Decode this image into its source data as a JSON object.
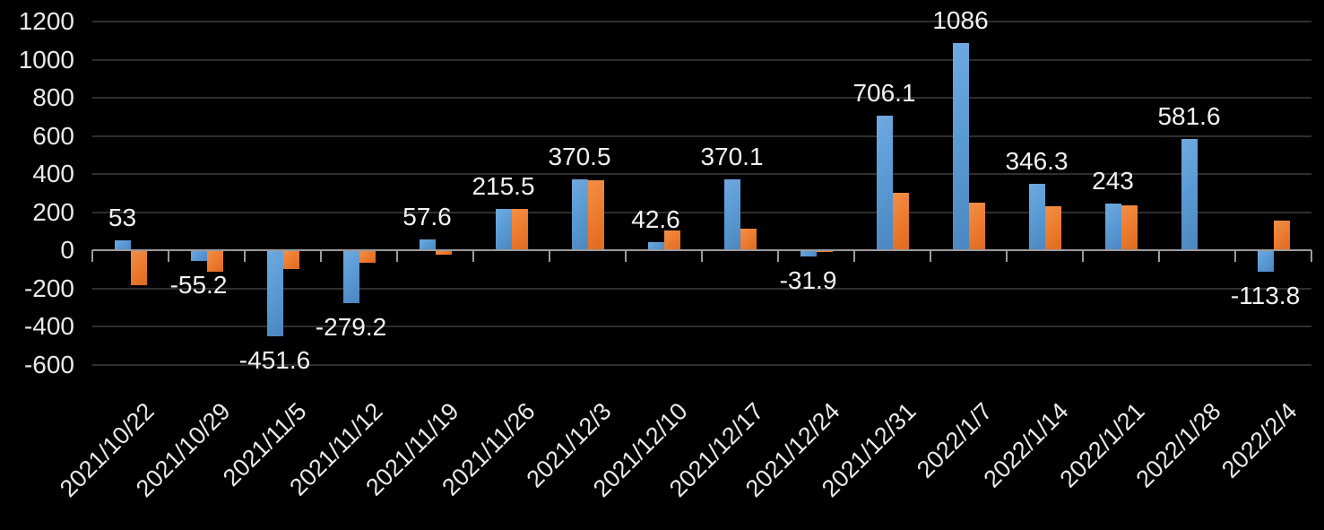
{
  "chart_data": {
    "type": "bar",
    "title": "",
    "legend_position": "none",
    "grid": true,
    "background": "#000000",
    "categories": [
      "2021/10/22",
      "2021/10/29",
      "2021/11/5",
      "2021/11/12",
      "2021/11/19",
      "2021/11/26",
      "2021/12/3",
      "2021/12/10",
      "2021/12/17",
      "2021/12/24",
      "2021/12/31",
      "2022/1/7",
      "2022/1/14",
      "2022/1/21",
      "2022/1/28",
      "2022/2/4"
    ],
    "series": [
      {
        "name": "series-blue",
        "color": "#5B9BD5",
        "values": [
          53,
          -55.2,
          -451.6,
          -279.2,
          57.6,
          215.5,
          370.5,
          42.6,
          370.1,
          -31.9,
          706.1,
          1086,
          346.3,
          243,
          581.6,
          -113.8
        ]
      },
      {
        "name": "series-orange",
        "color": "#ED7D31",
        "values": [
          -185,
          -112,
          -100,
          -68,
          -22,
          215,
          368,
          103,
          112,
          -10,
          300,
          250,
          230,
          236,
          0,
          157
        ]
      }
    ],
    "data_labels": {
      "series": "series-blue",
      "values": [
        "53",
        "-55.2",
        "-451.6",
        "-279.2",
        "57.6",
        "215.5",
        "370.5",
        "42.6",
        "370.1",
        "-31.9",
        "706.1",
        "1086",
        "346.3",
        "243",
        "581.6",
        "-113.8"
      ]
    },
    "y_axis": {
      "min": -600,
      "max": 1200,
      "step": 200,
      "ticks": [
        1200,
        1000,
        800,
        600,
        400,
        200,
        0,
        -200,
        -400,
        -600
      ]
    },
    "colors": {
      "axis_line": "#9C9C9C",
      "gridline": "#2F2F2F",
      "text": "#E9E9E9"
    }
  }
}
